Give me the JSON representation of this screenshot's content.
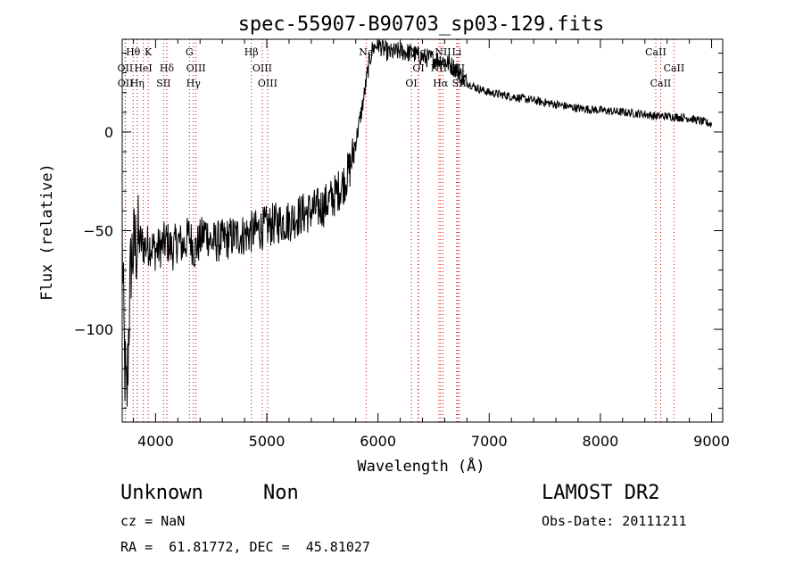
{
  "chart_data": {
    "type": "line",
    "title": "spec-55907-B90703_sp03-129.fits",
    "xlabel": "Wavelength (Å)",
    "ylabel": "Flux (relative)",
    "xlim": [
      3700,
      9100
    ],
    "ylim": [
      -147,
      47
    ],
    "xticks": [
      4000,
      5000,
      6000,
      7000,
      8000,
      9000
    ],
    "yticks": [
      -100,
      -50,
      0
    ],
    "grid": false,
    "series": [
      {
        "x": [
          3700,
          3720,
          3740,
          3760,
          3780,
          3800,
          3850,
          3900,
          3950,
          4000,
          4050,
          4100,
          4150,
          4200,
          4250,
          4300,
          4350,
          4400,
          4450,
          4500,
          4600,
          4700,
          4800,
          4900,
          5000,
          5100,
          5200,
          5300,
          5400,
          5500,
          5600,
          5700,
          5750,
          5800,
          5850,
          5880,
          5900,
          5920,
          5950,
          6000,
          6050,
          6100,
          6200,
          6300,
          6400,
          6500,
          6600,
          6700,
          6800,
          6900,
          7000,
          7200,
          7400,
          7600,
          7800,
          8000,
          8200,
          8400,
          8500,
          8600,
          8800,
          9000
        ],
        "y": [
          -55,
          -115,
          -140,
          -95,
          -65,
          -60,
          -55,
          -58,
          -57,
          -60,
          -58,
          -55,
          -60,
          -55,
          -58,
          -52,
          -60,
          -55,
          -50,
          -56,
          -55,
          -53,
          -52,
          -50,
          -48,
          -46,
          -45,
          -42,
          -40,
          -38,
          -33,
          -25,
          -18,
          -5,
          10,
          20,
          28,
          35,
          42,
          45,
          42,
          40,
          41,
          40,
          38,
          37,
          36,
          32,
          25,
          22,
          20,
          18,
          16,
          14,
          12,
          11,
          10,
          9,
          8,
          8,
          7,
          4
        ]
      }
    ],
    "lines": [
      {
        "label": "Hθ",
        "x": 3798,
        "row": 0
      },
      {
        "label": "K",
        "x": 3934,
        "row": 0
      },
      {
        "label": "G",
        "x": 4304,
        "row": 0
      },
      {
        "label": "Hβ",
        "x": 4861,
        "row": 0
      },
      {
        "label": "Na",
        "x": 5893,
        "row": 0
      },
      {
        "label": "Mg",
        "x": 6360,
        "row": 0
      },
      {
        "label": "NII",
        "x": 6584,
        "row": 0
      },
      {
        "label": "Li",
        "x": 6708,
        "row": 0
      },
      {
        "label": "CaII",
        "x": 8498,
        "row": 0
      },
      {
        "label": "OII",
        "x": 3727,
        "row": 1
      },
      {
        "label": "HeI",
        "x": 3889,
        "row": 1
      },
      {
        "label": "Hδ",
        "x": 4101,
        "row": 1
      },
      {
        "label": "OIII",
        "x": 4363,
        "row": 1
      },
      {
        "label": "OIII",
        "x": 4959,
        "row": 1
      },
      {
        "label": "OI",
        "x": 6364,
        "row": 1
      },
      {
        "label": "NII",
        "x": 6548,
        "row": 1
      },
      {
        "label": "SII",
        "x": 6717,
        "row": 1
      },
      {
        "label": "CaII",
        "x": 8662,
        "row": 1
      },
      {
        "label": "OII",
        "x": 3729,
        "row": 2
      },
      {
        "label": "Hη",
        "x": 3835,
        "row": 2
      },
      {
        "label": "SII",
        "x": 4072,
        "row": 2
      },
      {
        "label": "Hγ",
        "x": 4340,
        "row": 2
      },
      {
        "label": "OIII",
        "x": 5007,
        "row": 2
      },
      {
        "label": "OI",
        "x": 6300,
        "row": 2
      },
      {
        "label": "Hα",
        "x": 6563,
        "row": 2
      },
      {
        "label": "SII",
        "x": 6731,
        "row": 2
      },
      {
        "label": "CaII",
        "x": 8542,
        "row": 2
      }
    ],
    "line_color": "#d00000"
  },
  "footer": {
    "classification": "Unknown",
    "subclass": "Non",
    "survey": "LAMOST DR2",
    "cz": "cz = NaN",
    "obs_date": "Obs-Date: 20111211",
    "coords": "RA =  61.81772, DEC =  45.81027"
  }
}
